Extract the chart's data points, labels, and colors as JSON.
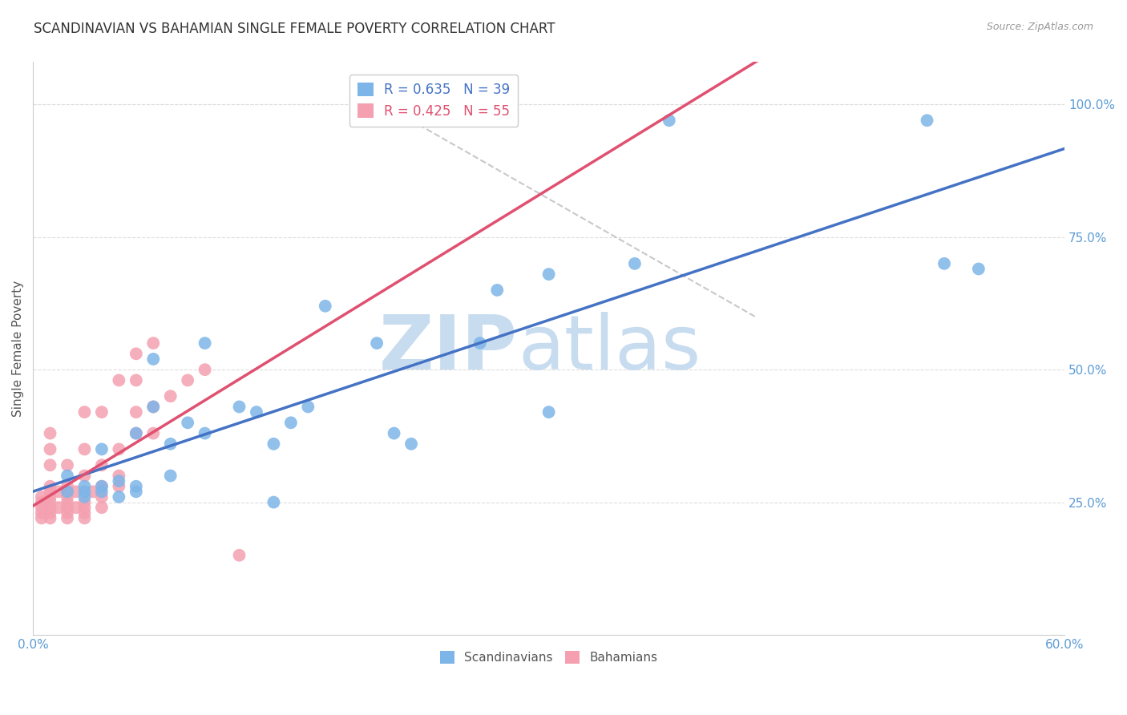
{
  "title": "SCANDINAVIAN VS BAHAMIAN SINGLE FEMALE POVERTY CORRELATION CHART",
  "source": "Source: ZipAtlas.com",
  "ylabel": "Single Female Poverty",
  "xlim": [
    0.0,
    0.6
  ],
  "ylim": [
    0.0,
    1.08
  ],
  "yticks": [
    0.25,
    0.5,
    0.75,
    1.0
  ],
  "ytick_labels": [
    "25.0%",
    "50.0%",
    "75.0%",
    "100.0%"
  ],
  "xtick_positions": [
    0.0,
    0.3,
    0.6
  ],
  "xtick_labels": [
    "0.0%",
    "",
    "60.0%"
  ],
  "scandinavians": {
    "label": "Scandinavians",
    "R": 0.635,
    "N": 39,
    "color": "#7EB5E8",
    "x": [
      0.02,
      0.02,
      0.03,
      0.03,
      0.03,
      0.04,
      0.04,
      0.04,
      0.05,
      0.05,
      0.06,
      0.06,
      0.06,
      0.07,
      0.07,
      0.08,
      0.08,
      0.09,
      0.1,
      0.1,
      0.12,
      0.13,
      0.14,
      0.14,
      0.15,
      0.16,
      0.17,
      0.2,
      0.21,
      0.22,
      0.26,
      0.27,
      0.3,
      0.3,
      0.35,
      0.37,
      0.52,
      0.55,
      0.53
    ],
    "y": [
      0.27,
      0.3,
      0.26,
      0.27,
      0.28,
      0.27,
      0.28,
      0.35,
      0.26,
      0.29,
      0.27,
      0.28,
      0.38,
      0.43,
      0.52,
      0.3,
      0.36,
      0.4,
      0.38,
      0.55,
      0.43,
      0.42,
      0.36,
      0.25,
      0.4,
      0.43,
      0.62,
      0.55,
      0.38,
      0.36,
      0.55,
      0.65,
      0.42,
      0.68,
      0.7,
      0.97,
      0.97,
      0.69,
      0.7
    ]
  },
  "bahamians": {
    "label": "Bahamians",
    "R": 0.425,
    "N": 55,
    "color": "#F4A0B0",
    "x": [
      0.005,
      0.005,
      0.005,
      0.005,
      0.005,
      0.01,
      0.01,
      0.01,
      0.01,
      0.01,
      0.01,
      0.01,
      0.01,
      0.01,
      0.01,
      0.015,
      0.015,
      0.02,
      0.02,
      0.02,
      0.02,
      0.02,
      0.02,
      0.02,
      0.02,
      0.025,
      0.025,
      0.03,
      0.03,
      0.03,
      0.03,
      0.03,
      0.03,
      0.03,
      0.035,
      0.04,
      0.04,
      0.04,
      0.04,
      0.04,
      0.05,
      0.05,
      0.05,
      0.05,
      0.06,
      0.06,
      0.06,
      0.06,
      0.07,
      0.07,
      0.07,
      0.08,
      0.09,
      0.1,
      0.12
    ],
    "y": [
      0.22,
      0.23,
      0.24,
      0.25,
      0.26,
      0.22,
      0.23,
      0.24,
      0.25,
      0.26,
      0.27,
      0.28,
      0.32,
      0.35,
      0.38,
      0.24,
      0.27,
      0.22,
      0.23,
      0.24,
      0.25,
      0.26,
      0.27,
      0.28,
      0.32,
      0.24,
      0.27,
      0.22,
      0.23,
      0.24,
      0.25,
      0.3,
      0.35,
      0.42,
      0.27,
      0.24,
      0.26,
      0.28,
      0.32,
      0.42,
      0.28,
      0.3,
      0.35,
      0.48,
      0.38,
      0.42,
      0.48,
      0.53,
      0.38,
      0.43,
      0.55,
      0.45,
      0.48,
      0.5,
      0.15
    ]
  },
  "blue_line_color": "#4472C4",
  "pink_line_color": "#E05070",
  "diagonal_color": "#BBBBBB",
  "watermark_zip": "ZIP",
  "watermark_atlas": "atlas",
  "watermark_color_zip": "#C8DCF0",
  "watermark_color_atlas": "#C8DCF0",
  "axis_color": "#5B9BD5",
  "grid_color": "#DDDDDD",
  "title_fontsize": 12,
  "label_fontsize": 11,
  "tick_fontsize": 11,
  "legend_fontsize": 12,
  "watermark_fontsize": 68
}
